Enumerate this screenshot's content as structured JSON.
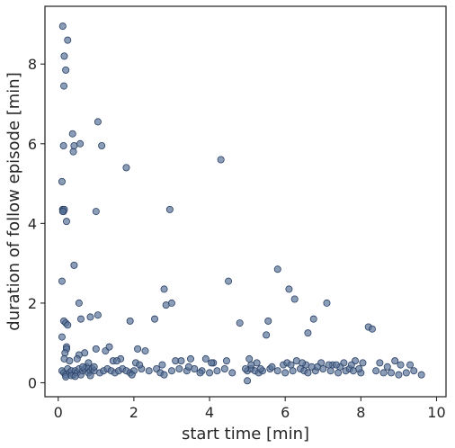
{
  "chart_data": {
    "type": "scatter",
    "title": "",
    "xlabel": "start time [min]",
    "ylabel": "duration of follow episode [min]",
    "xlim": [
      -0.35,
      10.25
    ],
    "ylim": [
      -0.35,
      9.45
    ],
    "xticks": [
      0,
      2,
      4,
      6,
      8,
      10
    ],
    "xtick_labels": [
      "0",
      "2",
      "4",
      "6",
      "8",
      "10"
    ],
    "yticks": [
      0,
      2,
      4,
      6,
      8
    ],
    "ytick_labels": [
      "0",
      "2",
      "4",
      "6",
      "8"
    ],
    "grid": false,
    "legend": "none",
    "marker_color": "#5a7399",
    "marker_edge_color": "#2b4166",
    "series": [
      {
        "x": [
          0.12,
          0.16,
          0.2,
          0.25,
          0.38,
          0.15,
          0.14,
          0.1,
          0.4,
          0.42,
          0.58,
          0.12,
          1.05,
          1.15,
          0.1,
          0.55,
          1.8,
          4.3,
          0.12,
          0.14,
          0.16,
          0.12,
          0.22,
          1.0,
          2.95,
          0.42,
          0.1,
          0.6,
          0.85,
          1.05,
          5.8,
          4.5,
          2.8,
          0.15,
          0.2,
          0.25,
          3.0,
          6.25,
          2.85,
          1.9,
          2.55,
          6.1,
          6.75,
          4.8,
          7.1,
          0.22,
          5.5,
          5.55,
          0.22,
          0.18,
          0.16,
          6.6,
          8.2,
          8.3,
          0.1,
          0.15,
          0.2,
          0.25,
          0.3,
          0.35,
          0.4,
          0.45,
          0.5,
          0.55,
          0.6,
          0.65,
          0.7,
          0.75,
          0.8,
          0.85,
          0.9,
          0.95,
          1.1,
          1.2,
          1.3,
          1.4,
          1.5,
          1.6,
          1.7,
          1.8,
          1.9,
          2.0,
          2.2,
          2.4,
          2.6,
          2.7,
          2.8,
          3.0,
          3.2,
          3.4,
          3.6,
          3.8,
          4.0,
          4.2,
          4.4,
          4.6,
          5.0,
          5.1,
          5.2,
          5.3,
          5.4,
          5.6,
          5.8,
          6.0,
          6.2,
          6.4,
          6.5,
          6.6,
          6.8,
          7.0,
          7.2,
          7.4,
          7.6,
          7.7,
          7.8,
          8.0,
          8.4,
          8.6,
          8.8,
          9.0,
          9.2,
          9.4,
          9.6,
          1.25,
          1.35,
          1.0,
          0.7,
          0.55,
          2.1,
          2.3,
          3.1,
          3.5,
          4.1,
          4.45,
          5.05,
          5.25,
          5.95,
          6.05,
          6.3,
          6.55,
          6.95,
          7.25,
          7.55,
          7.85,
          8.5,
          8.9,
          9.3,
          0.3,
          0.5,
          0.8,
          1.45,
          1.65,
          2.05,
          2.75,
          3.25,
          3.9,
          4.05,
          5.1,
          5.65,
          6.15,
          6.45,
          6.85,
          7.15,
          7.45,
          7.75,
          8.05,
          8.7,
          9.05,
          0.65,
          0.95,
          1.55,
          2.15,
          3.45,
          5.35,
          6.7,
          7.35,
          7.95,
          0.2,
          0.35,
          0.45,
          0.85,
          5.0,
          1.95,
          3.75,
          4.95
        ],
        "y": [
          8.95,
          8.2,
          7.85,
          8.6,
          6.25,
          7.45,
          5.95,
          5.05,
          5.8,
          5.95,
          6.0,
          4.35,
          6.55,
          5.95,
          2.55,
          2.0,
          5.4,
          5.6,
          4.35,
          4.3,
          4.35,
          4.3,
          4.05,
          4.3,
          4.35,
          2.95,
          1.15,
          1.6,
          1.65,
          1.7,
          2.85,
          2.55,
          2.35,
          1.55,
          1.5,
          1.45,
          2.0,
          2.1,
          1.95,
          1.55,
          1.6,
          2.35,
          1.6,
          1.5,
          2.0,
          0.9,
          1.2,
          1.55,
          0.85,
          0.75,
          0.6,
          1.25,
          1.4,
          1.35,
          0.3,
          0.25,
          0.2,
          0.35,
          0.25,
          0.3,
          0.2,
          0.3,
          0.25,
          0.35,
          0.2,
          0.3,
          0.35,
          0.4,
          0.25,
          0.3,
          0.35,
          0.3,
          0.25,
          0.3,
          0.35,
          0.3,
          0.25,
          0.3,
          0.35,
          0.3,
          0.25,
          0.3,
          0.35,
          0.3,
          0.35,
          0.25,
          0.2,
          0.3,
          0.35,
          0.3,
          0.35,
          0.3,
          0.25,
          0.3,
          0.35,
          0.25,
          0.3,
          0.35,
          0.3,
          0.25,
          0.3,
          0.35,
          0.3,
          0.25,
          0.3,
          0.35,
          0.3,
          0.25,
          0.3,
          0.35,
          0.3,
          0.25,
          0.3,
          0.35,
          0.3,
          0.25,
          0.3,
          0.25,
          0.25,
          0.2,
          0.25,
          0.3,
          0.2,
          0.8,
          0.9,
          0.85,
          0.75,
          0.7,
          0.85,
          0.8,
          0.55,
          0.6,
          0.5,
          0.55,
          0.6,
          0.5,
          0.45,
          0.5,
          0.55,
          0.45,
          0.5,
          0.45,
          0.5,
          0.55,
          0.5,
          0.55,
          0.45,
          0.55,
          0.6,
          0.5,
          0.55,
          0.6,
          0.5,
          0.45,
          0.55,
          0.6,
          0.5,
          0.45,
          0.4,
          0.45,
          0.5,
          0.4,
          0.45,
          0.4,
          0.45,
          0.5,
          0.4,
          0.45,
          0.4,
          0.4,
          0.55,
          0.45,
          0.4,
          0.35,
          0.4,
          0.45,
          0.35,
          0.15,
          0.18,
          0.16,
          0.18,
          0.05,
          0.2,
          0.25,
          0.35
        ]
      }
    ]
  }
}
